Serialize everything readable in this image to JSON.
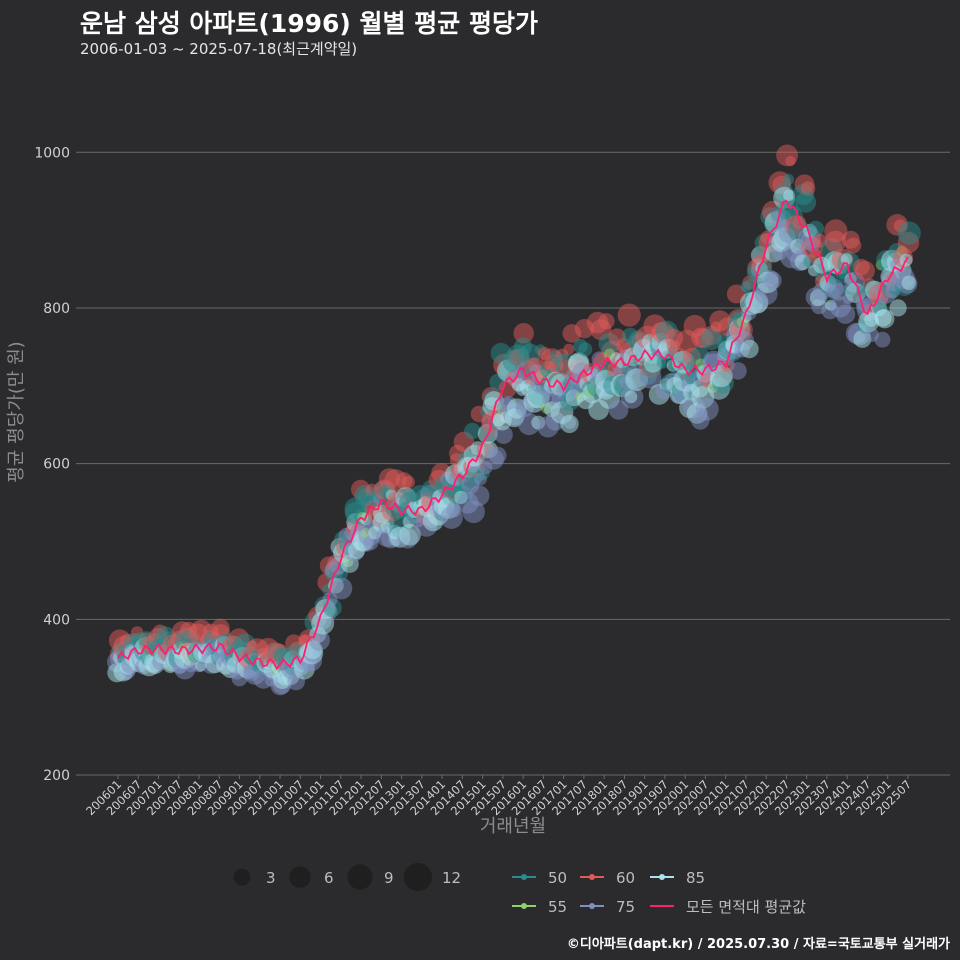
{
  "header": {
    "title": "운남 삼성 아파트(1996) 월별 평균 평당가",
    "subtitle": "2006-01-03 ~ 2025-07-18(최근계약일)"
  },
  "caption": "©디아파트(dapt.kr) / 2025.07.30 / 자료=국토교통부 실거래가",
  "colors": {
    "background": "#2b2b2d",
    "grid": "#6a6a6a",
    "area_50": "#2a8c8c",
    "area_55": "#8fd16a",
    "area_60": "#e05a5a",
    "area_75": "#7f8fbf",
    "area_85": "#a9e3ec",
    "avg_line": "#ff1f6e"
  },
  "chart_data": {
    "type": "scatter",
    "xlabel": "거래년월",
    "ylabel": "평균 평당가(만 원)",
    "ylim": [
      200,
      1080
    ],
    "yticks": [
      200,
      400,
      600,
      800,
      1000
    ],
    "xtick_labels": [
      "200601",
      "200607",
      "200701",
      "200707",
      "200801",
      "200807",
      "200901",
      "200907",
      "201001",
      "201007",
      "201101",
      "201107",
      "201201",
      "201207",
      "201301",
      "201307",
      "201401",
      "201407",
      "201501",
      "201507",
      "201601",
      "201607",
      "201701",
      "201707",
      "201801",
      "201807",
      "201901",
      "201907",
      "202001",
      "202007",
      "202101",
      "202107",
      "202201",
      "202207",
      "202301",
      "202307",
      "202401",
      "202407",
      "202501",
      "202507"
    ],
    "size_legend": {
      "values": [
        3,
        6,
        9,
        12
      ],
      "labels": [
        "3",
        "6",
        "9",
        "12"
      ]
    },
    "series": [
      {
        "name": "50",
        "color": "#2a8c8c",
        "key": "a50"
      },
      {
        "name": "60",
        "color": "#e05a5a",
        "key": "a60"
      },
      {
        "name": "85",
        "color": "#a9e3ec",
        "key": "a85"
      },
      {
        "name": "55",
        "color": "#8fd16a",
        "key": "a55"
      },
      {
        "name": "75",
        "color": "#7f8fbf",
        "key": "a75"
      },
      {
        "name": "모든 면적대 평균값",
        "color": "#ff1f6e",
        "key": "avg"
      }
    ],
    "avg_line": [
      {
        "x": "200601",
        "y": 350
      },
      {
        "x": "200607",
        "y": 360
      },
      {
        "x": "200701",
        "y": 362
      },
      {
        "x": "200707",
        "y": 360
      },
      {
        "x": "200801",
        "y": 362
      },
      {
        "x": "200807",
        "y": 365
      },
      {
        "x": "200901",
        "y": 352
      },
      {
        "x": "200907",
        "y": 345
      },
      {
        "x": "201001",
        "y": 342
      },
      {
        "x": "201007",
        "y": 348
      },
      {
        "x": "201101",
        "y": 400
      },
      {
        "x": "201107",
        "y": 480
      },
      {
        "x": "201201",
        "y": 530
      },
      {
        "x": "201207",
        "y": 550
      },
      {
        "x": "201301",
        "y": 540
      },
      {
        "x": "201307",
        "y": 540
      },
      {
        "x": "201401",
        "y": 560
      },
      {
        "x": "201407",
        "y": 585
      },
      {
        "x": "201501",
        "y": 620
      },
      {
        "x": "201507",
        "y": 700
      },
      {
        "x": "201601",
        "y": 720
      },
      {
        "x": "201607",
        "y": 705
      },
      {
        "x": "201701",
        "y": 700
      },
      {
        "x": "201707",
        "y": 715
      },
      {
        "x": "201801",
        "y": 730
      },
      {
        "x": "201807",
        "y": 730
      },
      {
        "x": "201901",
        "y": 740
      },
      {
        "x": "201907",
        "y": 740
      },
      {
        "x": "202001",
        "y": 720
      },
      {
        "x": "202007",
        "y": 720
      },
      {
        "x": "202101",
        "y": 730
      },
      {
        "x": "202107",
        "y": 790
      },
      {
        "x": "202201",
        "y": 880
      },
      {
        "x": "202207",
        "y": 940
      },
      {
        "x": "202301",
        "y": 900
      },
      {
        "x": "202307",
        "y": 840
      },
      {
        "x": "202401",
        "y": 855
      },
      {
        "x": "202407",
        "y": 790
      },
      {
        "x": "202501",
        "y": 840
      },
      {
        "x": "202507",
        "y": 860
      }
    ]
  }
}
